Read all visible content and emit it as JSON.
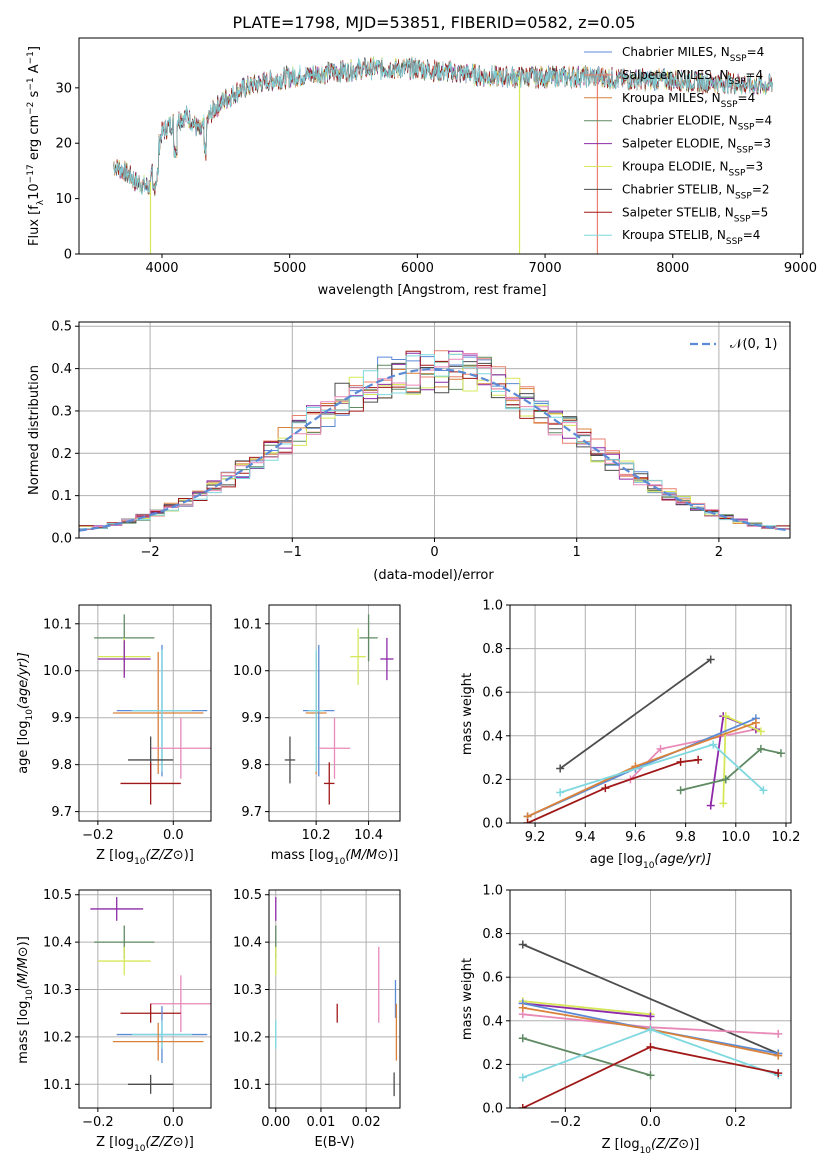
{
  "figure_title": "PLATE=1798, MJD=53851, FIBERID=0582, z=0.05",
  "colors": {
    "chabrier_miles": "#5b8bd6",
    "salpeter_miles": "#e8826f",
    "kroupa_miles": "#d9823b",
    "chabrier_elodie": "#5f8a63",
    "salpeter_elodie": "#8e2aa8",
    "kroupa_elodie": "#d6e85a",
    "chabrier_stelib": "#4d4d4d",
    "salpeter_stelib": "#a01818",
    "kroupa_stelib": "#7fd8e0",
    "pink": "#e889b8",
    "gaussian": "#5b8bd6",
    "grid": "#b0b0b0"
  },
  "chart_data": [
    {
      "id": "spectrum",
      "type": "line",
      "xlabel": "wavelength [Angstrom, rest frame]",
      "ylabel_main": "Flux [f",
      "ylabel_sub": "λ",
      "ylabel_rest": "10",
      "ylabel_exp": "−17",
      "ylabel_tail": " erg cm",
      "ylabel_exp2": "−2",
      "ylabel_tail2": " s",
      "ylabel_exp3": "−1",
      "ylabel_tail3": " A",
      "ylabel_exp4": "−1",
      "ylabel_end": "]",
      "xlim": [
        3350,
        9020
      ],
      "ylim": [
        0,
        39
      ],
      "xticks": [
        "4000",
        "5000",
        "6000",
        "7000",
        "8000",
        "9000"
      ],
      "yticks": [
        "0",
        "10",
        "20",
        "30"
      ],
      "xtick_values": [
        4000,
        5000,
        6000,
        7000,
        8000,
        9000
      ],
      "ytick_values": [
        0,
        10,
        20,
        30
      ],
      "continuum": {
        "x": [
          3620,
          3700,
          3800,
          3900,
          3950,
          4000,
          4100,
          4200,
          4300,
          4400,
          4500,
          4600,
          4700,
          4800,
          4900,
          5000,
          5200,
          5400,
          5600,
          5800,
          6000,
          6200,
          6400,
          6600,
          6800,
          7000,
          7200,
          7400,
          7600,
          7800,
          8000,
          8200,
          8400,
          8600,
          8780
        ],
        "y": [
          16,
          15,
          13,
          12,
          17,
          22,
          24,
          25,
          22,
          26,
          28,
          29.5,
          30.5,
          31,
          31.5,
          32,
          32.5,
          33,
          33.5,
          33.5,
          33.5,
          33,
          32.5,
          32,
          32,
          32,
          32,
          32,
          31.5,
          31.5,
          31.5,
          31,
          31,
          30.5,
          30.5
        ]
      },
      "series": [
        {
          "name": "Chabrier MILES, N",
          "sub": "SSP",
          "suffix": "=4",
          "color_key": "chabrier_miles"
        },
        {
          "name": "Salpeter MILES, N",
          "sub": "SSP",
          "suffix": "=4",
          "color_key": "salpeter_miles"
        },
        {
          "name": "Kroupa MILES, N",
          "sub": "SSP",
          "suffix": "=4",
          "color_key": "kroupa_miles"
        },
        {
          "name": "Chabrier ELODIE, N",
          "sub": "SSP",
          "suffix": "=4",
          "color_key": "chabrier_elodie"
        },
        {
          "name": "Salpeter ELODIE, N",
          "sub": "SSP",
          "suffix": "=3",
          "color_key": "salpeter_elodie"
        },
        {
          "name": "Kroupa ELODIE, N",
          "sub": "SSP",
          "suffix": "=3",
          "color_key": "kroupa_elodie"
        },
        {
          "name": "Chabrier STELIB, N",
          "sub": "SSP",
          "suffix": "=2",
          "color_key": "chabrier_stelib"
        },
        {
          "name": "Salpeter STELIB, N",
          "sub": "SSP",
          "suffix": "=5",
          "color_key": "salpeter_stelib"
        },
        {
          "name": "Kroupa STELIB, N",
          "sub": "SSP",
          "suffix": "=4",
          "color_key": "kroupa_stelib"
        }
      ],
      "dropouts": [
        {
          "x": 3910,
          "color_key": "kroupa_elodie"
        },
        {
          "x": 6800,
          "color_key": "kroupa_elodie"
        },
        {
          "x": 7410,
          "color_key": "salpeter_miles"
        }
      ],
      "legend": "top-right",
      "grid": false
    },
    {
      "id": "residuals",
      "type": "histogram",
      "xlabel": "(data-model)/error",
      "ylabel": "Normed distribution",
      "xlim": [
        -2.5,
        2.5
      ],
      "ylim": [
        0,
        0.51
      ],
      "xticks": [
        "−2",
        "−1",
        "0",
        "1",
        "2"
      ],
      "yticks": [
        "0.0",
        "0.1",
        "0.2",
        "0.3",
        "0.4",
        "0.5"
      ],
      "xtick_values": [
        -2,
        -1,
        0,
        1,
        2
      ],
      "ytick_values": [
        0,
        0.1,
        0.2,
        0.3,
        0.4,
        0.5
      ],
      "bin_width": 0.1,
      "legend_label": "𝒩(0, 1)",
      "legend": "top-right",
      "grid": true
    },
    {
      "id": "age_vs_z",
      "type": "scatter",
      "xlabel_main": "Z [log",
      "xlabel_sub": "10",
      "xlabel_tail": "(Z/Z",
      "xlabel_end": "⊙)]",
      "ylabel_main": "age  [log",
      "ylabel_sub": "10",
      "ylabel_tail": "(age/yr)]",
      "xlim": [
        -0.25,
        0.1
      ],
      "ylim": [
        9.68,
        10.14
      ],
      "xticks": [
        "−0.2",
        "0.0"
      ],
      "yticks": [
        "9.7",
        "9.8",
        "9.9",
        "10.0",
        "10.1"
      ],
      "xtick_values": [
        -0.2,
        0.0
      ],
      "ytick_values": [
        9.7,
        9.8,
        9.9,
        10.0,
        10.1
      ],
      "points": [
        {
          "x": -0.13,
          "y": 10.07,
          "xerr": 0.08,
          "yerr": 0.05,
          "color_key": "chabrier_elodie"
        },
        {
          "x": -0.13,
          "y": 10.03,
          "xerr": 0.07,
          "yerr": 0.04,
          "color_key": "kroupa_elodie"
        },
        {
          "x": -0.13,
          "y": 10.025,
          "xerr": 0.07,
          "yerr": 0.04,
          "color_key": "salpeter_elodie"
        },
        {
          "x": -0.04,
          "y": 9.91,
          "xerr": 0.12,
          "yerr": 0.13,
          "color_key": "kroupa_miles"
        },
        {
          "x": -0.03,
          "y": 9.915,
          "xerr": 0.12,
          "yerr": 0.14,
          "color_key": "chabrier_miles"
        },
        {
          "x": -0.03,
          "y": 9.915,
          "xerr": 0.08,
          "yerr": 0.13,
          "color_key": "kroupa_stelib"
        },
        {
          "x": 0.02,
          "y": 9.835,
          "xerr": 0.08,
          "yerr": 0.065,
          "color_key": "pink"
        },
        {
          "x": -0.06,
          "y": 9.81,
          "xerr": 0.06,
          "yerr": 0.05,
          "color_key": "chabrier_stelib"
        },
        {
          "x": -0.06,
          "y": 9.76,
          "xerr": 0.08,
          "yerr": 0.045,
          "color_key": "salpeter_stelib"
        }
      ],
      "grid": true
    },
    {
      "id": "age_vs_mass",
      "type": "scatter",
      "xlabel_main": "mass [log",
      "xlabel_sub": "10",
      "xlabel_tail": "(M/M",
      "xlabel_end": "⊙)]",
      "xlim": [
        10.02,
        10.52
      ],
      "ylim": [
        9.68,
        10.14
      ],
      "xticks": [
        "10.2",
        "10.4"
      ],
      "yticks": [
        "9.7",
        "9.8",
        "9.9",
        "10.0",
        "10.1"
      ],
      "xtick_values": [
        10.2,
        10.4
      ],
      "ytick_values": [
        9.7,
        9.8,
        9.9,
        10.0,
        10.1
      ],
      "points": [
        {
          "x": 10.4,
          "y": 10.07,
          "xerr": 0.035,
          "yerr": 0.05,
          "color_key": "chabrier_elodie"
        },
        {
          "x": 10.36,
          "y": 10.03,
          "xerr": 0.03,
          "yerr": 0.06,
          "color_key": "kroupa_elodie"
        },
        {
          "x": 10.47,
          "y": 10.025,
          "xerr": 0.025,
          "yerr": 0.045,
          "color_key": "salpeter_elodie"
        },
        {
          "x": 10.2,
          "y": 9.91,
          "xerr": 0.04,
          "yerr": 0.13,
          "color_key": "kroupa_miles"
        },
        {
          "x": 10.21,
          "y": 9.915,
          "xerr": 0.06,
          "yerr": 0.14,
          "color_key": "chabrier_miles"
        },
        {
          "x": 10.2,
          "y": 9.915,
          "xerr": 0.03,
          "yerr": 0.13,
          "color_key": "kroupa_stelib"
        },
        {
          "x": 10.27,
          "y": 9.835,
          "xerr": 0.06,
          "yerr": 0.065,
          "color_key": "pink"
        },
        {
          "x": 10.1,
          "y": 9.81,
          "xerr": 0.02,
          "yerr": 0.05,
          "color_key": "chabrier_stelib"
        },
        {
          "x": 10.25,
          "y": 9.76,
          "xerr": 0.02,
          "yerr": 0.045,
          "color_key": "salpeter_stelib"
        }
      ],
      "grid": true
    },
    {
      "id": "weight_vs_age",
      "type": "line",
      "xlabel_main": "age  [log",
      "xlabel_sub": "10",
      "xlabel_tail": "(age/yr)]",
      "ylabel": "mass weight",
      "xlim": [
        9.1,
        10.22
      ],
      "ylim": [
        0,
        1.0
      ],
      "xticks": [
        "9.2",
        "9.4",
        "9.6",
        "9.8",
        "10.0",
        "10.2"
      ],
      "yticks": [
        "0.0",
        "0.2",
        "0.4",
        "0.6",
        "0.8",
        "1.0"
      ],
      "xtick_values": [
        9.2,
        9.4,
        9.6,
        9.8,
        10.0,
        10.2
      ],
      "ytick_values": [
        0,
        0.2,
        0.4,
        0.6,
        0.8,
        1.0
      ],
      "lines": [
        {
          "color_key": "chabrier_stelib",
          "x": [
            9.3,
            9.9
          ],
          "y": [
            0.25,
            0.75
          ]
        },
        {
          "color_key": "pink",
          "x": [
            9.58,
            9.7,
            10.08
          ],
          "y": [
            0.2,
            0.34,
            0.43
          ]
        },
        {
          "color_key": "salpeter_elodie",
          "x": [
            9.9,
            9.95,
            10.08
          ],
          "y": [
            0.08,
            0.49,
            0.43
          ]
        },
        {
          "color_key": "kroupa_elodie",
          "x": [
            9.95,
            9.96,
            10.1
          ],
          "y": [
            0.09,
            0.49,
            0.42
          ]
        },
        {
          "color_key": "chabrier_miles",
          "x": [
            9.17,
            9.6,
            10.08
          ],
          "y": [
            0.03,
            0.25,
            0.48
          ]
        },
        {
          "color_key": "kroupa_miles",
          "x": [
            9.17,
            9.6,
            10.08
          ],
          "y": [
            0.03,
            0.26,
            0.46
          ]
        },
        {
          "color_key": "chabrier_elodie",
          "x": [
            9.78,
            9.96,
            10.1,
            10.18
          ],
          "y": [
            0.15,
            0.2,
            0.34,
            0.32
          ]
        },
        {
          "color_key": "kroupa_stelib",
          "x": [
            9.3,
            9.91,
            10.11
          ],
          "y": [
            0.14,
            0.36,
            0.15
          ]
        },
        {
          "color_key": "salpeter_stelib",
          "x": [
            9.17,
            9.48,
            9.78,
            9.85
          ],
          "y": [
            0.0,
            0.16,
            0.28,
            0.29
          ]
        }
      ],
      "grid": true
    },
    {
      "id": "mass_vs_z",
      "type": "scatter",
      "xlabel_main": "Z [log",
      "xlabel_sub": "10",
      "xlabel_tail": "(Z/Z",
      "xlabel_end": "⊙)]",
      "ylabel_main": "mass [log",
      "ylabel_sub": "10",
      "ylabel_tail": "(M/M",
      "ylabel_end": "⊙)]",
      "xlim": [
        -0.25,
        0.1
      ],
      "ylim": [
        10.05,
        10.51
      ],
      "xticks": [
        "−0.2",
        "0.0"
      ],
      "yticks": [
        "10.1",
        "10.2",
        "10.3",
        "10.4",
        "10.5"
      ],
      "xtick_values": [
        -0.2,
        0.0
      ],
      "ytick_values": [
        10.1,
        10.2,
        10.3,
        10.4,
        10.5
      ],
      "points": [
        {
          "x": -0.15,
          "y": 10.47,
          "xerr": 0.07,
          "yerr": 0.025,
          "color_key": "salpeter_elodie"
        },
        {
          "x": -0.13,
          "y": 10.4,
          "xerr": 0.08,
          "yerr": 0.035,
          "color_key": "chabrier_elodie"
        },
        {
          "x": -0.13,
          "y": 10.36,
          "xerr": 0.07,
          "yerr": 0.03,
          "color_key": "kroupa_elodie"
        },
        {
          "x": 0.02,
          "y": 10.27,
          "xerr": 0.08,
          "yerr": 0.06,
          "color_key": "pink"
        },
        {
          "x": -0.06,
          "y": 10.25,
          "xerr": 0.08,
          "yerr": 0.02,
          "color_key": "salpeter_stelib"
        },
        {
          "x": -0.03,
          "y": 10.205,
          "xerr": 0.12,
          "yerr": 0.06,
          "color_key": "chabrier_miles"
        },
        {
          "x": -0.03,
          "y": 10.205,
          "xerr": 0.08,
          "yerr": 0.03,
          "color_key": "kroupa_stelib"
        },
        {
          "x": -0.04,
          "y": 10.19,
          "xerr": 0.12,
          "yerr": 0.04,
          "color_key": "kroupa_miles"
        },
        {
          "x": -0.06,
          "y": 10.1,
          "xerr": 0.06,
          "yerr": 0.02,
          "color_key": "chabrier_stelib"
        }
      ],
      "grid": true
    },
    {
      "id": "mass_vs_ebv",
      "type": "scatter",
      "xlabel": "E(B-V)",
      "xlim": [
        -0.0015,
        0.0275
      ],
      "ylim": [
        10.05,
        10.51
      ],
      "xticks": [
        "0.00",
        "0.01",
        "0.02"
      ],
      "yticks": [
        "10.1",
        "10.2",
        "10.3",
        "10.4",
        "10.5"
      ],
      "xtick_values": [
        0.0,
        0.01,
        0.02
      ],
      "ytick_values": [
        10.1,
        10.2,
        10.3,
        10.4,
        10.5
      ],
      "points": [
        {
          "x": 0.0,
          "y": 10.47,
          "xerr": 0,
          "yerr": 0.025,
          "color_key": "salpeter_elodie"
        },
        {
          "x": 0.0,
          "y": 10.4,
          "xerr": 0,
          "yerr": 0.035,
          "color_key": "chabrier_elodie"
        },
        {
          "x": 0.0,
          "y": 10.36,
          "xerr": 0,
          "yerr": 0.03,
          "color_key": "kroupa_elodie"
        },
        {
          "x": 0.0,
          "y": 10.205,
          "xerr": 0,
          "yerr": 0.03,
          "color_key": "kroupa_stelib"
        },
        {
          "x": 0.0136,
          "y": 10.25,
          "xerr": 0,
          "yerr": 0.02,
          "color_key": "salpeter_stelib"
        },
        {
          "x": 0.0228,
          "y": 10.31,
          "xerr": 0,
          "yerr": 0.08,
          "color_key": "pink"
        },
        {
          "x": 0.0265,
          "y": 10.28,
          "xerr": 0,
          "yerr": 0.04,
          "color_key": "chabrier_miles"
        },
        {
          "x": 0.0267,
          "y": 10.21,
          "xerr": 0,
          "yerr": 0.06,
          "color_key": "kroupa_miles"
        },
        {
          "x": 0.0262,
          "y": 10.1,
          "xerr": 0,
          "yerr": 0.025,
          "color_key": "chabrier_stelib"
        }
      ],
      "grid": true
    },
    {
      "id": "weight_vs_z",
      "type": "line",
      "xlabel_main": "Z [log",
      "xlabel_sub": "10",
      "xlabel_tail": "(Z/Z",
      "xlabel_end": "⊙)]",
      "ylabel": "mass weight",
      "xlim": [
        -0.33,
        0.33
      ],
      "ylim": [
        0,
        1.0
      ],
      "xticks": [
        "−0.2",
        "0.0",
        "0.2"
      ],
      "yticks": [
        "0.0",
        "0.2",
        "0.4",
        "0.6",
        "0.8",
        "1.0"
      ],
      "xtick_values": [
        -0.2,
        0.0,
        0.2
      ],
      "ytick_values": [
        0,
        0.2,
        0.4,
        0.6,
        0.8,
        1.0
      ],
      "lines": [
        {
          "color_key": "chabrier_stelib",
          "x": [
            -0.3,
            0.3
          ],
          "y": [
            0.75,
            0.25
          ]
        },
        {
          "color_key": "kroupa_elodie",
          "x": [
            -0.3,
            0.0
          ],
          "y": [
            0.49,
            0.43
          ]
        },
        {
          "color_key": "salpeter_elodie",
          "x": [
            -0.3,
            0.0
          ],
          "y": [
            0.48,
            0.42
          ]
        },
        {
          "color_key": "pink",
          "x": [
            -0.3,
            0.0,
            0.3
          ],
          "y": [
            0.43,
            0.37,
            0.34
          ]
        },
        {
          "color_key": "chabrier_miles",
          "x": [
            -0.3,
            0.0,
            0.3
          ],
          "y": [
            0.48,
            0.36,
            0.25
          ]
        },
        {
          "color_key": "kroupa_miles",
          "x": [
            -0.3,
            0.0,
            0.3
          ],
          "y": [
            0.46,
            0.36,
            0.24
          ]
        },
        {
          "color_key": "chabrier_elodie",
          "x": [
            -0.3,
            0.0
          ],
          "y": [
            0.32,
            0.15
          ]
        },
        {
          "color_key": "kroupa_stelib",
          "x": [
            -0.3,
            0.0,
            0.3
          ],
          "y": [
            0.14,
            0.36,
            0.15
          ]
        },
        {
          "color_key": "salpeter_stelib",
          "x": [
            -0.3,
            0.0,
            0.3
          ],
          "y": [
            0.0,
            0.28,
            0.16
          ]
        }
      ],
      "grid": true
    }
  ]
}
